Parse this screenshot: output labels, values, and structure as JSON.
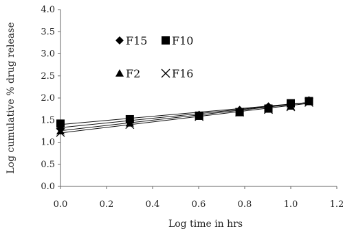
{
  "chart_data": {
    "type": "scatter",
    "title": "",
    "xlabel": "Log time  in hrs",
    "ylabel": "Log cumulative % drug release",
    "xlim": [
      0.0,
      1.2
    ],
    "ylim": [
      0.0,
      4.0
    ],
    "xticks": [
      "0.0",
      "0.2",
      "0.4",
      "0.6",
      "0.8",
      "1.0",
      "1.2"
    ],
    "yticks": [
      "0.0",
      "0.5",
      "1.0",
      "1.5",
      "2.0",
      "2.5",
      "3.0",
      "3.5",
      "4.0"
    ],
    "grid": false,
    "legend_position": "top-left (inside plot)",
    "series": [
      {
        "name": "F15",
        "marker": "diamond",
        "color": "#000000",
        "x": [
          0.0,
          0.301,
          0.602,
          0.778,
          0.903,
          1.0,
          1.079
        ],
        "y": [
          1.3,
          1.45,
          1.62,
          1.73,
          1.81,
          1.88,
          1.95
        ],
        "trendline": [
          [
            0.0,
            1.33
          ],
          [
            1.079,
            1.9
          ]
        ]
      },
      {
        "name": "F10",
        "marker": "square",
        "color": "#000000",
        "x": [
          0.0,
          0.301,
          0.602,
          0.778,
          0.903,
          1.0,
          1.079
        ],
        "y": [
          1.42,
          1.52,
          1.6,
          1.68,
          1.76,
          1.88,
          1.93
        ],
        "trendline": [
          [
            0.0,
            1.4
          ],
          [
            1.079,
            1.9
          ]
        ]
      },
      {
        "name": "F2",
        "marker": "triangle",
        "color": "#000000",
        "x": [
          0.0,
          0.301,
          0.602,
          0.778,
          0.903,
          1.0,
          1.079
        ],
        "y": [
          1.25,
          1.43,
          1.58,
          1.7,
          1.76,
          1.81,
          1.93
        ],
        "trendline": [
          [
            0.0,
            1.26
          ],
          [
            1.079,
            1.9
          ]
        ]
      },
      {
        "name": "F16",
        "marker": "x",
        "color": "#000000",
        "x": [
          0.0,
          0.301,
          0.602,
          0.778,
          0.903,
          1.0,
          1.079
        ],
        "y": [
          1.22,
          1.4,
          1.58,
          1.68,
          1.74,
          1.8,
          1.9
        ],
        "trendline": [
          [
            0.0,
            1.21
          ],
          [
            1.079,
            1.88
          ]
        ]
      }
    ]
  }
}
